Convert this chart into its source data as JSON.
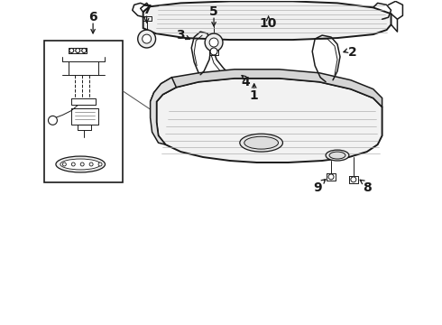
{
  "bg_color": "#ffffff",
  "line_color": "#1a1a1a",
  "figsize": [
    4.9,
    3.6
  ],
  "dpi": 100,
  "xlim": [
    0,
    490
  ],
  "ylim": [
    0,
    360
  ]
}
